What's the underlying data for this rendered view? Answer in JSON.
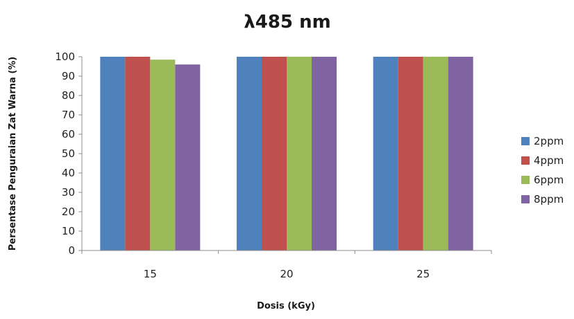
{
  "chart_data": {
    "type": "bar",
    "title": "λ485 nm",
    "xlabel": "Dosis (kGy)",
    "ylabel": "Persentase Penguraian Zat Warna (%)",
    "categories": [
      "15",
      "20",
      "25"
    ],
    "ylim": [
      0,
      100
    ],
    "yticks": [
      0,
      10,
      20,
      30,
      40,
      50,
      60,
      70,
      80,
      90,
      100
    ],
    "grid": false,
    "legend_position": "right",
    "series": [
      {
        "name": "2ppm",
        "color": "#4f81bd",
        "values": [
          100,
          100,
          100
        ]
      },
      {
        "name": "4ppm",
        "color": "#c0504d",
        "values": [
          100,
          100,
          100
        ]
      },
      {
        "name": "6ppm",
        "color": "#9bbb59",
        "values": [
          98.5,
          100,
          100
        ]
      },
      {
        "name": "8ppm",
        "color": "#8064a2",
        "values": [
          96,
          100,
          100
        ]
      }
    ]
  }
}
